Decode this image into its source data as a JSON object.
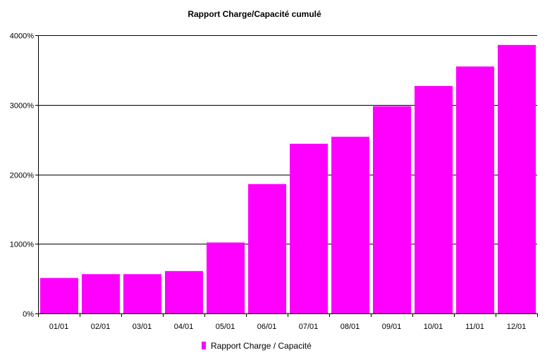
{
  "chart_data": {
    "type": "bar",
    "title": "Rapport Charge/Capacité cumulé",
    "xlabel": "",
    "ylabel": "",
    "categories": [
      "01/01",
      "02/01",
      "03/01",
      "04/01",
      "05/01",
      "06/01",
      "07/01",
      "08/01",
      "09/01",
      "10/01",
      "11/01",
      "12/01"
    ],
    "series": [
      {
        "name": "Rapport Charge / Capacité",
        "color": "#ff00ff",
        "values": [
          510,
          565,
          565,
          610,
          1020,
          1860,
          2440,
          2540,
          2980,
          3270,
          3550,
          3860
        ]
      }
    ],
    "ylim": [
      0,
      4000
    ],
    "yticks": [
      0,
      1000,
      2000,
      3000,
      4000
    ],
    "ytick_labels": [
      "0%",
      "1000%",
      "2000%",
      "3000%",
      "4000%"
    ],
    "grid": true,
    "legend_position": "bottom"
  }
}
